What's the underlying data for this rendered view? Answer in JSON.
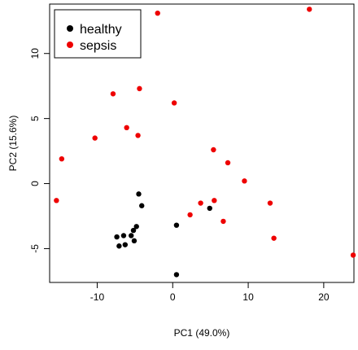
{
  "chart_data": {
    "type": "scatter",
    "title": "",
    "xlabel": "PC1 (49.0%)",
    "ylabel": "PC2 (15.6%)",
    "xlim": [
      -16.3,
      24.0
    ],
    "ylim": [
      -7.6,
      13.8
    ],
    "xticks": [
      -10,
      0,
      10,
      20
    ],
    "yticks": [
      -5,
      0,
      5,
      10
    ],
    "legend_position": "top-left",
    "series": [
      {
        "name": "healthy",
        "color": "#000000",
        "points": [
          {
            "x": -4.5,
            "y": -0.8
          },
          {
            "x": -4.1,
            "y": -1.7
          },
          {
            "x": 0.5,
            "y": -3.2
          },
          {
            "x": 4.9,
            "y": -1.9
          },
          {
            "x": -5.2,
            "y": -3.6
          },
          {
            "x": -4.8,
            "y": -3.3
          },
          {
            "x": -7.4,
            "y": -4.1
          },
          {
            "x": -6.5,
            "y": -4.0
          },
          {
            "x": -5.5,
            "y": -4.0
          },
          {
            "x": -5.1,
            "y": -4.4
          },
          {
            "x": -7.1,
            "y": -4.8
          },
          {
            "x": -6.3,
            "y": -4.7
          },
          {
            "x": 0.5,
            "y": -7.0
          }
        ]
      },
      {
        "name": "sepsis",
        "color": "#ee0000",
        "points": [
          {
            "x": -2.0,
            "y": 13.1
          },
          {
            "x": 18.1,
            "y": 13.4
          },
          {
            "x": -4.4,
            "y": 7.3
          },
          {
            "x": -7.9,
            "y": 6.9
          },
          {
            "x": 0.2,
            "y": 6.2
          },
          {
            "x": -6.1,
            "y": 4.3
          },
          {
            "x": -4.6,
            "y": 3.7
          },
          {
            "x": -10.3,
            "y": 3.5
          },
          {
            "x": -14.7,
            "y": 1.9
          },
          {
            "x": 5.4,
            "y": 2.6
          },
          {
            "x": 7.3,
            "y": 1.6
          },
          {
            "x": 9.5,
            "y": 0.2
          },
          {
            "x": -15.4,
            "y": -1.3
          },
          {
            "x": 3.7,
            "y": -1.5
          },
          {
            "x": 5.5,
            "y": -1.3
          },
          {
            "x": 12.9,
            "y": -1.5
          },
          {
            "x": 2.3,
            "y": -2.4
          },
          {
            "x": 6.7,
            "y": -2.9
          },
          {
            "x": 13.4,
            "y": -4.2
          },
          {
            "x": 23.9,
            "y": -5.5
          }
        ]
      }
    ]
  }
}
